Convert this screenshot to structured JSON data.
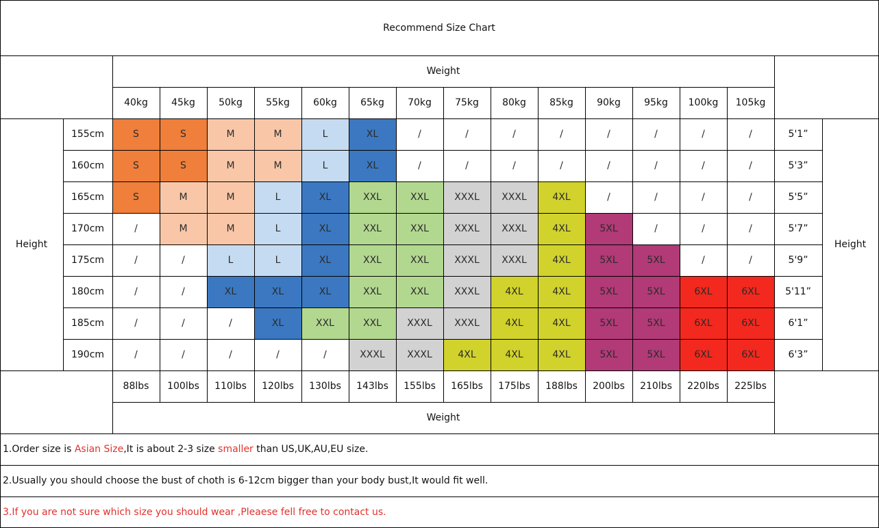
{
  "title": "Recommend Size Chart",
  "weight_label": "Weight",
  "height_label": "Height",
  "kg": [
    "40kg",
    "45kg",
    "50kg",
    "55kg",
    "60kg",
    "65kg",
    "70kg",
    "75kg",
    "80kg",
    "85kg",
    "90kg",
    "95kg",
    "100kg",
    "105kg"
  ],
  "lbs": [
    "88lbs",
    "100lbs",
    "110lbs",
    "120lbs",
    "130lbs",
    "143lbs",
    "155lbs",
    "165lbs",
    "175lbs",
    "188lbs",
    "200lbs",
    "210lbs",
    "220lbs",
    "225lbs"
  ],
  "cm": [
    "155cm",
    "160cm",
    "165cm",
    "170cm",
    "175cm",
    "180cm",
    "185cm",
    "190cm"
  ],
  "ft": [
    "5'1”",
    "5'3”",
    "5'5”",
    "5'7”",
    "5'9”",
    "5'11”",
    "6'1”",
    "6'3”"
  ],
  "sizes": [
    [
      "S",
      "S",
      "M",
      "M",
      "L",
      "XL",
      "/",
      "/",
      "/",
      "/",
      "/",
      "/",
      "/",
      "/"
    ],
    [
      "S",
      "S",
      "M",
      "M",
      "L",
      "XL",
      "/",
      "/",
      "/",
      "/",
      "/",
      "/",
      "/",
      "/"
    ],
    [
      "S",
      "M",
      "M",
      "L",
      "XL",
      "XXL",
      "XXL",
      "XXXL",
      "XXXL",
      "4XL",
      "/",
      "/",
      "/",
      "/"
    ],
    [
      "/",
      "M",
      "M",
      "L",
      "XL",
      "XXL",
      "XXL",
      "XXXL",
      "XXXL",
      "4XL",
      "5XL",
      "/",
      "/",
      "/"
    ],
    [
      "/",
      "/",
      "L",
      "L",
      "XL",
      "XXL",
      "XXL",
      "XXXL",
      "XXXL",
      "4XL",
      "5XL",
      "5XL",
      "/",
      "/"
    ],
    [
      "/",
      "/",
      "XL",
      "XL",
      "XL",
      "XXL",
      "XXL",
      "XXXL",
      "4XL",
      "4XL",
      "5XL",
      "5XL",
      "6XL",
      "6XL"
    ],
    [
      "/",
      "/",
      "/",
      "XL",
      "XXL",
      "XXL",
      "XXXL",
      "XXXL",
      "4XL",
      "4XL",
      "5XL",
      "5XL",
      "6XL",
      "6XL"
    ],
    [
      "/",
      "/",
      "/",
      "/",
      "/",
      "XXXL",
      "XXXL",
      "4XL",
      "4XL",
      "4XL",
      "5XL",
      "5XL",
      "6XL",
      "6XL"
    ]
  ],
  "size_colors": {
    "S": "#ef7f3a",
    "M": "#f9c7a8",
    "L": "#c5dbf1",
    "XL": "#3b78c1",
    "XXL": "#b2d890",
    "XXXL": "#d2d2d2",
    "4XL": "#d1d22c",
    "5XL": "#b13a77",
    "6XL": "#f3281e",
    "/": "#ffffff"
  },
  "notes": [
    [
      {
        "text": "1.Order size is ",
        "color": "#111111"
      },
      {
        "text": "Asian Size",
        "color": "#e0302a"
      },
      {
        "text": ",It is about 2-3 size ",
        "color": "#111111"
      },
      {
        "text": "smaller",
        "color": "#e0302a"
      },
      {
        "text": " than US,UK,AU,EU size.",
        "color": "#111111"
      }
    ],
    [
      {
        "text": "2.Usually you should choose the bust of choth is 6-12cm bigger than your body bust,It would fit well.",
        "color": "#111111"
      }
    ],
    [
      {
        "text": "3.If you are not sure which size you should wear ,Pleaese fell free to contact us.",
        "color": "#e0302a"
      }
    ]
  ]
}
